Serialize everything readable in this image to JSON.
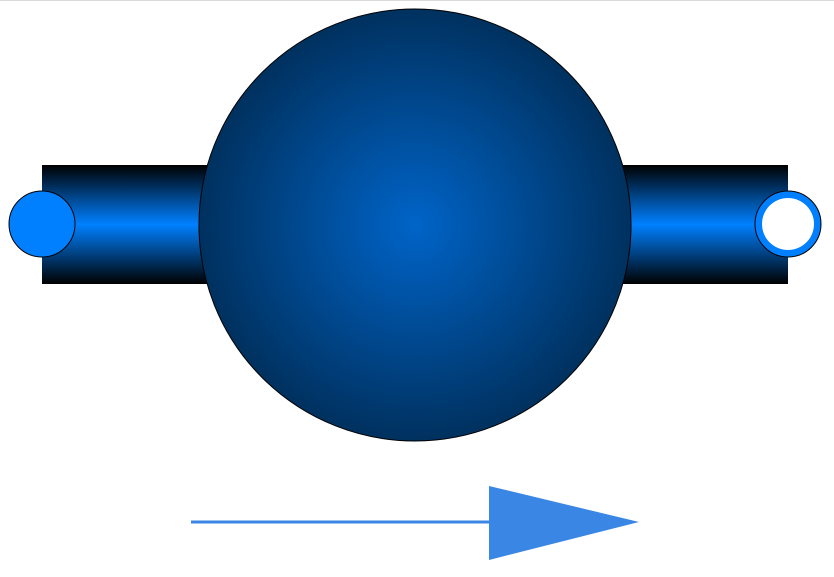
{
  "diagram": {
    "components": [
      {
        "id": "volume",
        "kind": "sphere",
        "label": ""
      },
      {
        "id": "pipe_left",
        "kind": "pipe",
        "label": ""
      },
      {
        "id": "pipe_right",
        "kind": "pipe",
        "label": ""
      },
      {
        "id": "port_a",
        "kind": "fluid-port-inlet",
        "label": ""
      },
      {
        "id": "port_b",
        "kind": "fluid-port-outlet",
        "label": ""
      },
      {
        "id": "flow_arrow",
        "kind": "flow-direction-arrow",
        "label": ""
      }
    ],
    "colors": {
      "sphere_center": "#0064c8",
      "sphere_edge": "#00315f",
      "pipe_center": "#0080ff",
      "pipe_edge": "#000000",
      "port_a_fill": "#0080ff",
      "port_b_ring": "#0080ff",
      "port_b_fill": "#ffffff",
      "arrow": "#3a86e4",
      "outline": "#000000"
    }
  }
}
